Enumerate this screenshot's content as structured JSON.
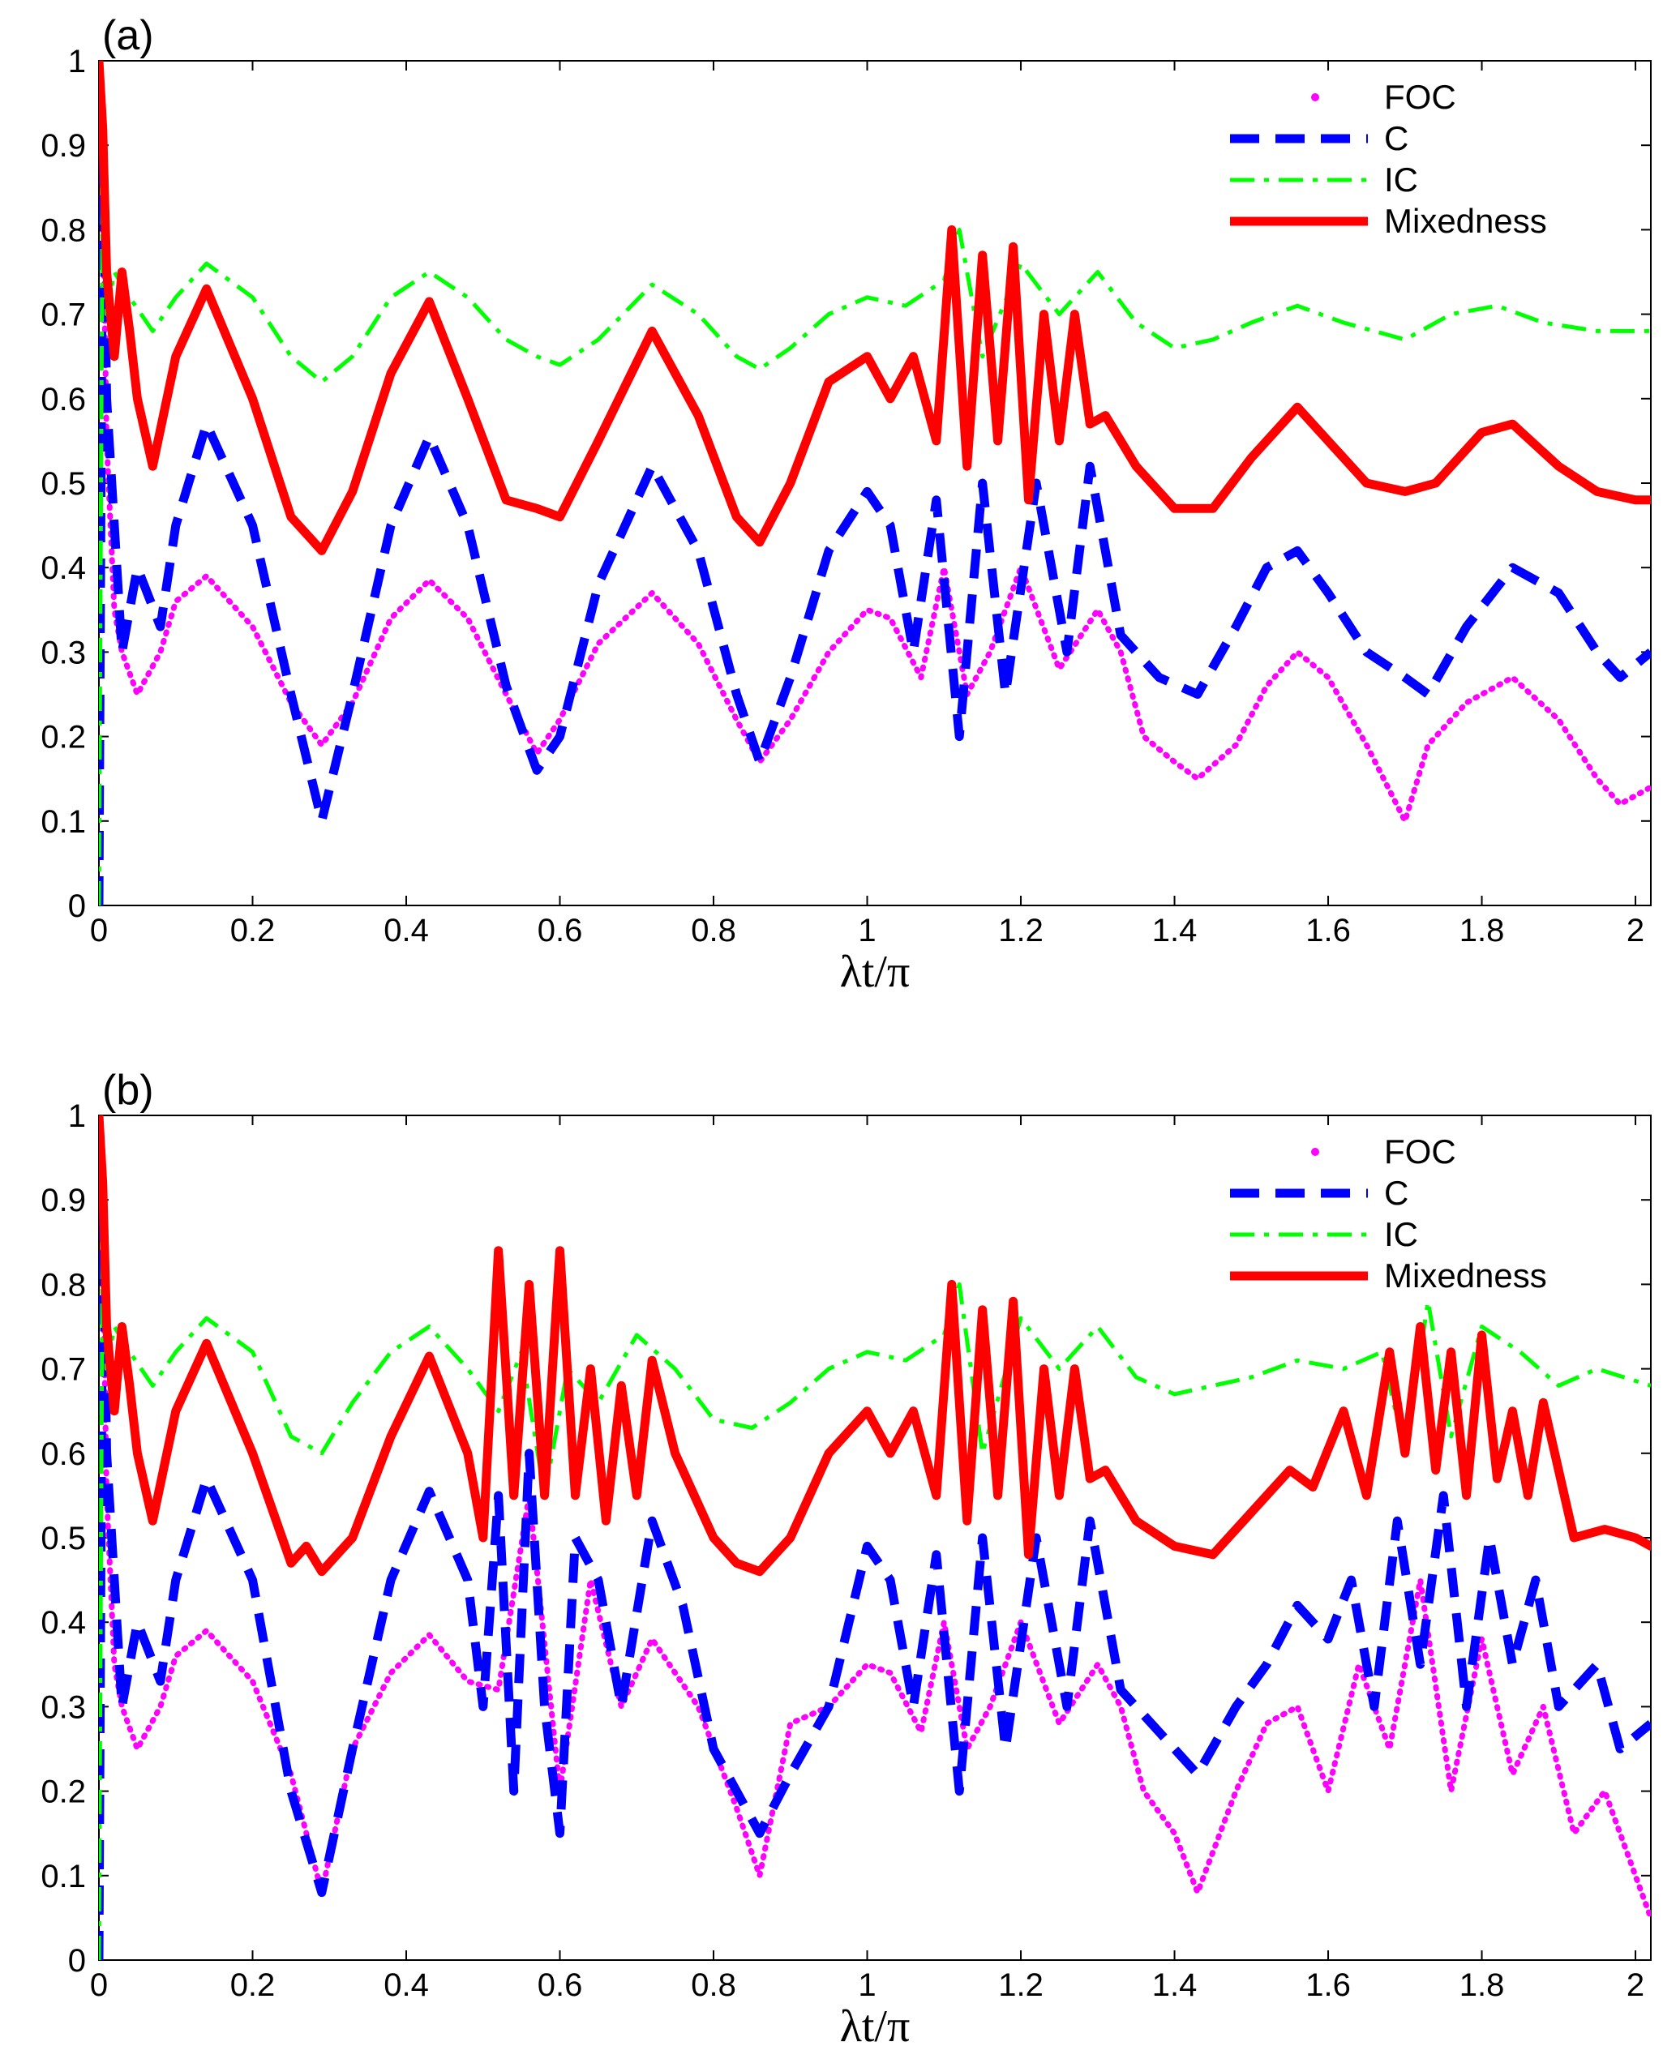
{
  "chart_data": [
    {
      "type": "line",
      "panel_label": "(a)",
      "xlabel": "λt/π",
      "ylabel": "",
      "xlim": [
        0,
        2.02
      ],
      "ylim": [
        0,
        1
      ],
      "xticks": [
        "0",
        "0.2",
        "0.4",
        "0.6",
        "0.8",
        "1",
        "1.2",
        "1.4",
        "1.6",
        "1.8",
        "2"
      ],
      "yticks": [
        "0",
        "0.1",
        "0.2",
        "0.3",
        "0.4",
        "0.5",
        "0.6",
        "0.7",
        "0.8",
        "0.9",
        "1"
      ],
      "legend_position": "top-right",
      "series": [
        {
          "name": "FOC",
          "style": "dotted",
          "color": "#ff00ff",
          "x": [
            0,
            0.005,
            0.01,
            0.02,
            0.03,
            0.05,
            0.08,
            0.1,
            0.14,
            0.2,
            0.25,
            0.29,
            0.33,
            0.38,
            0.43,
            0.48,
            0.53,
            0.57,
            0.6,
            0.65,
            0.72,
            0.78,
            0.83,
            0.86,
            0.9,
            0.95,
            1.0,
            1.03,
            1.07,
            1.1,
            1.13,
            1.16,
            1.2,
            1.25,
            1.3,
            1.33,
            1.36,
            1.4,
            1.43,
            1.48,
            1.52,
            1.56,
            1.6,
            1.65,
            1.7,
            1.73,
            1.78,
            1.84,
            1.9,
            1.95,
            1.98,
            2.02
          ],
          "y": [
            1.0,
            0.85,
            0.55,
            0.35,
            0.3,
            0.25,
            0.3,
            0.36,
            0.39,
            0.33,
            0.24,
            0.19,
            0.24,
            0.34,
            0.385,
            0.34,
            0.25,
            0.18,
            0.22,
            0.31,
            0.37,
            0.31,
            0.22,
            0.17,
            0.22,
            0.3,
            0.35,
            0.34,
            0.27,
            0.4,
            0.25,
            0.3,
            0.4,
            0.28,
            0.35,
            0.3,
            0.2,
            0.17,
            0.15,
            0.19,
            0.26,
            0.3,
            0.27,
            0.19,
            0.1,
            0.19,
            0.24,
            0.27,
            0.22,
            0.15,
            0.12,
            0.14
          ]
        },
        {
          "name": "C",
          "style": "dashed",
          "color": "#0000ff",
          "x": [
            0,
            0.005,
            0.01,
            0.02,
            0.03,
            0.05,
            0.08,
            0.1,
            0.14,
            0.2,
            0.25,
            0.29,
            0.33,
            0.38,
            0.43,
            0.48,
            0.53,
            0.57,
            0.6,
            0.65,
            0.72,
            0.78,
            0.83,
            0.86,
            0.9,
            0.95,
            1.0,
            1.03,
            1.06,
            1.09,
            1.12,
            1.15,
            1.18,
            1.22,
            1.26,
            1.29,
            1.33,
            1.38,
            1.43,
            1.48,
            1.52,
            1.56,
            1.6,
            1.65,
            1.7,
            1.73,
            1.78,
            1.84,
            1.9,
            1.95,
            1.98,
            2.02
          ],
          "y": [
            0.0,
            0.9,
            0.6,
            0.45,
            0.3,
            0.4,
            0.33,
            0.45,
            0.57,
            0.45,
            0.25,
            0.1,
            0.25,
            0.45,
            0.555,
            0.45,
            0.26,
            0.16,
            0.2,
            0.38,
            0.52,
            0.42,
            0.25,
            0.17,
            0.27,
            0.42,
            0.49,
            0.45,
            0.3,
            0.48,
            0.2,
            0.5,
            0.25,
            0.5,
            0.3,
            0.52,
            0.32,
            0.27,
            0.25,
            0.33,
            0.4,
            0.42,
            0.37,
            0.3,
            0.27,
            0.25,
            0.33,
            0.4,
            0.37,
            0.3,
            0.27,
            0.3
          ]
        },
        {
          "name": "IC",
          "style": "dashdot",
          "color": "#00ff00",
          "x": [
            0,
            0.005,
            0.01,
            0.02,
            0.04,
            0.07,
            0.1,
            0.14,
            0.2,
            0.25,
            0.29,
            0.33,
            0.38,
            0.43,
            0.48,
            0.53,
            0.57,
            0.6,
            0.65,
            0.72,
            0.78,
            0.83,
            0.86,
            0.9,
            0.95,
            1.0,
            1.05,
            1.1,
            1.12,
            1.15,
            1.2,
            1.25,
            1.3,
            1.35,
            1.4,
            1.45,
            1.5,
            1.56,
            1.62,
            1.7,
            1.76,
            1.82,
            1.88,
            1.95,
            2.02
          ],
          "y": [
            0.0,
            0.9,
            0.7,
            0.75,
            0.72,
            0.68,
            0.72,
            0.76,
            0.72,
            0.65,
            0.62,
            0.65,
            0.72,
            0.75,
            0.72,
            0.67,
            0.65,
            0.64,
            0.67,
            0.735,
            0.7,
            0.65,
            0.635,
            0.66,
            0.7,
            0.72,
            0.71,
            0.74,
            0.8,
            0.65,
            0.76,
            0.7,
            0.75,
            0.69,
            0.66,
            0.67,
            0.69,
            0.71,
            0.69,
            0.67,
            0.7,
            0.71,
            0.69,
            0.68,
            0.68
          ]
        },
        {
          "name": "Mixedness",
          "style": "solid",
          "color": "#ff0000",
          "x": [
            0,
            0.005,
            0.01,
            0.02,
            0.03,
            0.04,
            0.05,
            0.07,
            0.1,
            0.14,
            0.2,
            0.25,
            0.29,
            0.33,
            0.38,
            0.43,
            0.48,
            0.53,
            0.57,
            0.6,
            0.65,
            0.72,
            0.78,
            0.83,
            0.86,
            0.9,
            0.95,
            1.0,
            1.03,
            1.06,
            1.09,
            1.11,
            1.13,
            1.15,
            1.17,
            1.19,
            1.21,
            1.23,
            1.25,
            1.27,
            1.29,
            1.31,
            1.35,
            1.4,
            1.45,
            1.5,
            1.56,
            1.6,
            1.65,
            1.7,
            1.74,
            1.8,
            1.84,
            1.9,
            1.95,
            2.0,
            2.02
          ],
          "y": [
            1.0,
            0.92,
            0.75,
            0.65,
            0.75,
            0.68,
            0.6,
            0.52,
            0.65,
            0.73,
            0.6,
            0.46,
            0.42,
            0.49,
            0.63,
            0.715,
            0.6,
            0.48,
            0.47,
            0.46,
            0.55,
            0.68,
            0.58,
            0.46,
            0.43,
            0.5,
            0.62,
            0.65,
            0.6,
            0.65,
            0.55,
            0.8,
            0.52,
            0.77,
            0.55,
            0.78,
            0.48,
            0.7,
            0.55,
            0.7,
            0.57,
            0.58,
            0.52,
            0.47,
            0.47,
            0.53,
            0.59,
            0.55,
            0.5,
            0.49,
            0.5,
            0.56,
            0.57,
            0.52,
            0.49,
            0.48,
            0.48
          ]
        }
      ]
    },
    {
      "type": "line",
      "panel_label": "(b)",
      "xlabel": "λt/π",
      "ylabel": "",
      "xlim": [
        0,
        2.02
      ],
      "ylim": [
        0,
        1
      ],
      "xticks": [
        "0",
        "0.2",
        "0.4",
        "0.6",
        "0.8",
        "1",
        "1.2",
        "1.4",
        "1.6",
        "1.8",
        "2"
      ],
      "yticks": [
        "0",
        "0.1",
        "0.2",
        "0.3",
        "0.4",
        "0.5",
        "0.6",
        "0.7",
        "0.8",
        "0.9",
        "1"
      ],
      "legend_position": "top-right",
      "series": [
        {
          "name": "FOC",
          "style": "dotted",
          "color": "#ff00ff",
          "x": [
            0,
            0.005,
            0.01,
            0.02,
            0.03,
            0.05,
            0.08,
            0.1,
            0.14,
            0.2,
            0.25,
            0.29,
            0.33,
            0.38,
            0.43,
            0.48,
            0.52,
            0.56,
            0.6,
            0.64,
            0.68,
            0.72,
            0.78,
            0.83,
            0.86,
            0.9,
            0.95,
            1.0,
            1.03,
            1.07,
            1.1,
            1.13,
            1.16,
            1.2,
            1.25,
            1.3,
            1.33,
            1.36,
            1.4,
            1.43,
            1.48,
            1.52,
            1.56,
            1.6,
            1.64,
            1.68,
            1.72,
            1.76,
            1.8,
            1.84,
            1.88,
            1.92,
            1.96,
            2.0,
            2.02
          ],
          "y": [
            1.0,
            0.85,
            0.55,
            0.35,
            0.3,
            0.25,
            0.3,
            0.36,
            0.39,
            0.33,
            0.22,
            0.08,
            0.25,
            0.34,
            0.385,
            0.33,
            0.32,
            0.55,
            0.2,
            0.45,
            0.3,
            0.38,
            0.3,
            0.18,
            0.1,
            0.28,
            0.3,
            0.35,
            0.34,
            0.27,
            0.4,
            0.25,
            0.3,
            0.4,
            0.28,
            0.35,
            0.3,
            0.2,
            0.15,
            0.08,
            0.2,
            0.28,
            0.3,
            0.2,
            0.35,
            0.25,
            0.45,
            0.2,
            0.38,
            0.22,
            0.3,
            0.15,
            0.2,
            0.1,
            0.05
          ]
        },
        {
          "name": "C",
          "style": "dashed",
          "color": "#0000ff",
          "x": [
            0,
            0.005,
            0.01,
            0.02,
            0.03,
            0.05,
            0.08,
            0.1,
            0.14,
            0.2,
            0.25,
            0.29,
            0.33,
            0.38,
            0.43,
            0.48,
            0.5,
            0.52,
            0.54,
            0.56,
            0.58,
            0.6,
            0.62,
            0.65,
            0.68,
            0.72,
            0.76,
            0.8,
            0.83,
            0.86,
            0.9,
            0.95,
            1.0,
            1.03,
            1.06,
            1.09,
            1.12,
            1.15,
            1.18,
            1.22,
            1.26,
            1.29,
            1.33,
            1.38,
            1.43,
            1.48,
            1.52,
            1.56,
            1.6,
            1.63,
            1.66,
            1.69,
            1.72,
            1.75,
            1.78,
            1.81,
            1.84,
            1.87,
            1.9,
            1.95,
            1.98,
            2.02
          ],
          "y": [
            0.0,
            0.9,
            0.6,
            0.45,
            0.3,
            0.4,
            0.33,
            0.45,
            0.57,
            0.45,
            0.2,
            0.08,
            0.25,
            0.45,
            0.555,
            0.45,
            0.3,
            0.55,
            0.2,
            0.6,
            0.3,
            0.15,
            0.5,
            0.45,
            0.3,
            0.52,
            0.42,
            0.25,
            0.2,
            0.15,
            0.22,
            0.3,
            0.49,
            0.45,
            0.3,
            0.48,
            0.2,
            0.5,
            0.25,
            0.5,
            0.3,
            0.52,
            0.32,
            0.27,
            0.22,
            0.3,
            0.35,
            0.42,
            0.38,
            0.45,
            0.3,
            0.52,
            0.35,
            0.55,
            0.3,
            0.5,
            0.35,
            0.45,
            0.3,
            0.35,
            0.25,
            0.28
          ]
        },
        {
          "name": "IC",
          "style": "dashdot",
          "color": "#00ff00",
          "x": [
            0,
            0.005,
            0.01,
            0.02,
            0.04,
            0.07,
            0.1,
            0.14,
            0.2,
            0.25,
            0.29,
            0.33,
            0.38,
            0.43,
            0.48,
            0.52,
            0.55,
            0.58,
            0.61,
            0.65,
            0.7,
            0.75,
            0.8,
            0.85,
            0.9,
            0.95,
            1.0,
            1.05,
            1.1,
            1.12,
            1.15,
            1.2,
            1.25,
            1.3,
            1.35,
            1.4,
            1.45,
            1.5,
            1.56,
            1.62,
            1.67,
            1.7,
            1.73,
            1.76,
            1.8,
            1.85,
            1.9,
            1.95,
            2.02
          ],
          "y": [
            0.0,
            0.9,
            0.7,
            0.75,
            0.72,
            0.68,
            0.72,
            0.76,
            0.72,
            0.62,
            0.6,
            0.66,
            0.72,
            0.75,
            0.7,
            0.65,
            0.72,
            0.55,
            0.7,
            0.66,
            0.74,
            0.7,
            0.64,
            0.63,
            0.66,
            0.7,
            0.72,
            0.71,
            0.74,
            0.8,
            0.6,
            0.76,
            0.7,
            0.75,
            0.69,
            0.67,
            0.68,
            0.69,
            0.71,
            0.7,
            0.72,
            0.6,
            0.78,
            0.62,
            0.75,
            0.72,
            0.68,
            0.7,
            0.68
          ]
        },
        {
          "name": "Mixedness",
          "style": "solid",
          "color": "#ff0000",
          "x": [
            0,
            0.005,
            0.01,
            0.02,
            0.03,
            0.04,
            0.05,
            0.07,
            0.1,
            0.14,
            0.2,
            0.25,
            0.27,
            0.29,
            0.31,
            0.33,
            0.38,
            0.43,
            0.48,
            0.5,
            0.52,
            0.54,
            0.56,
            0.58,
            0.6,
            0.62,
            0.64,
            0.66,
            0.68,
            0.7,
            0.72,
            0.75,
            0.8,
            0.83,
            0.86,
            0.9,
            0.95,
            1.0,
            1.03,
            1.06,
            1.09,
            1.11,
            1.13,
            1.15,
            1.17,
            1.19,
            1.21,
            1.23,
            1.25,
            1.27,
            1.29,
            1.31,
            1.35,
            1.4,
            1.45,
            1.5,
            1.55,
            1.58,
            1.62,
            1.65,
            1.68,
            1.7,
            1.72,
            1.74,
            1.76,
            1.78,
            1.8,
            1.82,
            1.84,
            1.86,
            1.88,
            1.92,
            1.96,
            2.0,
            2.02
          ],
          "y": [
            1.0,
            0.92,
            0.75,
            0.65,
            0.75,
            0.68,
            0.6,
            0.52,
            0.65,
            0.73,
            0.6,
            0.47,
            0.49,
            0.46,
            0.48,
            0.5,
            0.62,
            0.715,
            0.6,
            0.5,
            0.84,
            0.55,
            0.8,
            0.55,
            0.84,
            0.55,
            0.7,
            0.52,
            0.68,
            0.55,
            0.71,
            0.6,
            0.5,
            0.47,
            0.46,
            0.5,
            0.6,
            0.65,
            0.6,
            0.65,
            0.55,
            0.8,
            0.52,
            0.77,
            0.55,
            0.78,
            0.48,
            0.7,
            0.55,
            0.7,
            0.57,
            0.58,
            0.52,
            0.49,
            0.48,
            0.53,
            0.58,
            0.56,
            0.65,
            0.55,
            0.72,
            0.6,
            0.75,
            0.58,
            0.72,
            0.55,
            0.74,
            0.57,
            0.65,
            0.55,
            0.66,
            0.5,
            0.51,
            0.5,
            0.49
          ]
        }
      ]
    }
  ]
}
